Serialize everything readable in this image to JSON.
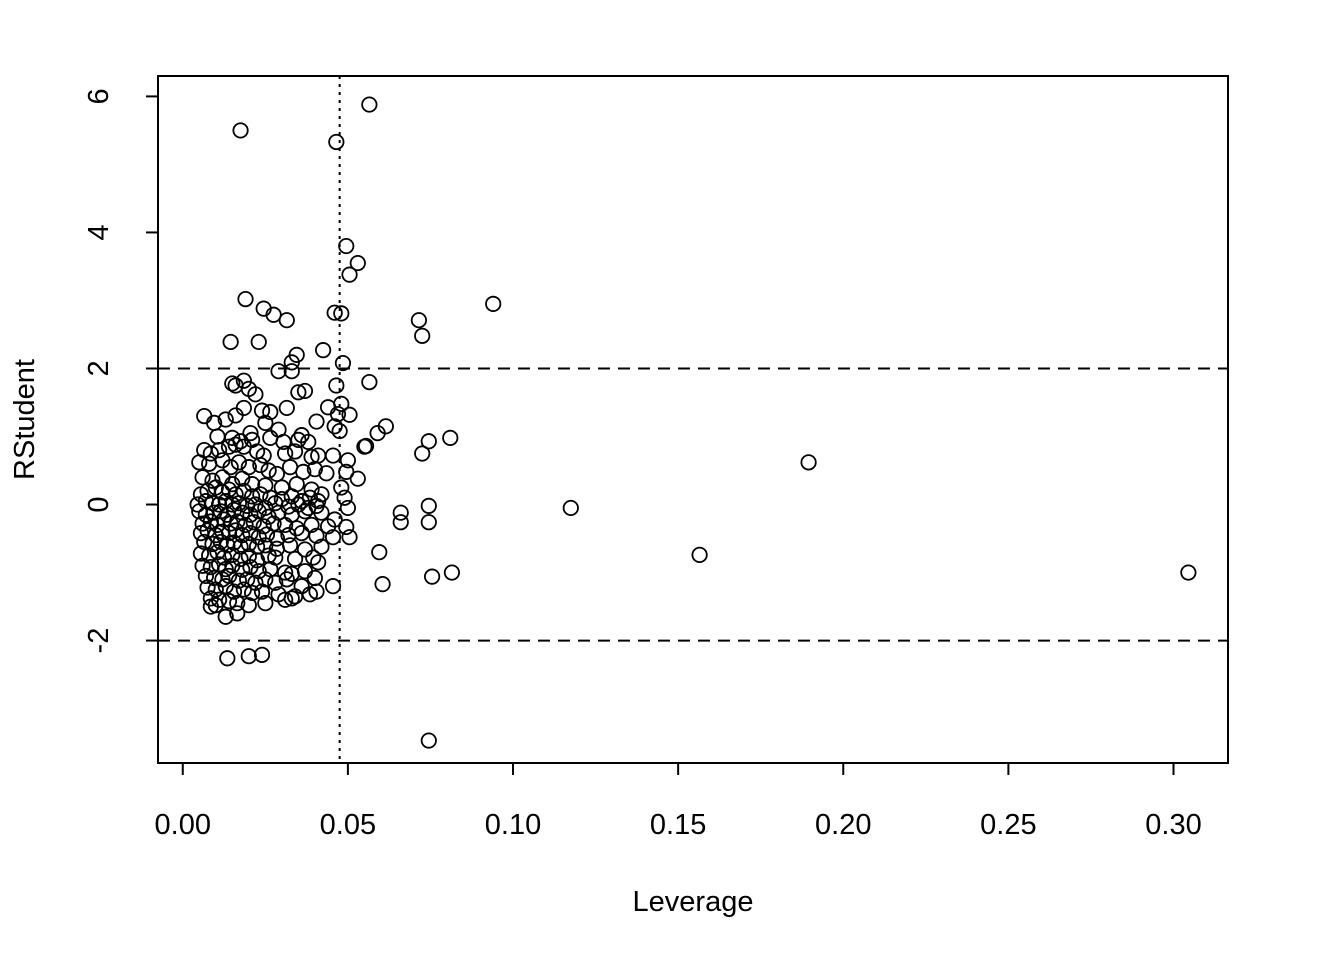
{
  "chart_data": {
    "type": "scatter",
    "title": "",
    "xlabel": "Leverage",
    "ylabel": "RStudent",
    "xlim": [
      -0.0075,
      0.3165
    ],
    "ylim": [
      -3.8,
      6.3
    ],
    "xticks": [
      0.0,
      0.05,
      0.1,
      0.15,
      0.2,
      0.25,
      0.3
    ],
    "xtick_labels": [
      "0.00",
      "0.05",
      "0.10",
      "0.15",
      "0.20",
      "0.25",
      "0.30"
    ],
    "yticks": [
      -2,
      0,
      2,
      4,
      6
    ],
    "ytick_labels": [
      "-2",
      "0",
      "2",
      "4",
      "6"
    ],
    "reference_lines": [
      {
        "orientation": "horizontal",
        "value": 2,
        "style": "dashed"
      },
      {
        "orientation": "horizontal",
        "value": -2,
        "style": "dashed"
      },
      {
        "orientation": "vertical",
        "value": 0.0475,
        "style": "dotted"
      }
    ],
    "marker": "open-circle",
    "grid": false,
    "legend": "none",
    "points": [
      [
        0.0175,
        5.5
      ],
      [
        0.0465,
        5.33
      ],
      [
        0.0565,
        5.88
      ],
      [
        0.0495,
        3.8
      ],
      [
        0.053,
        3.55
      ],
      [
        0.0505,
        3.38
      ],
      [
        0.019,
        3.02
      ],
      [
        0.0245,
        2.88
      ],
      [
        0.0275,
        2.79
      ],
      [
        0.0315,
        2.71
      ],
      [
        0.046,
        2.82
      ],
      [
        0.048,
        2.81
      ],
      [
        0.0715,
        2.71
      ],
      [
        0.0725,
        2.48
      ],
      [
        0.094,
        2.95
      ],
      [
        0.0145,
        2.39
      ],
      [
        0.023,
        2.39
      ],
      [
        0.0425,
        2.27
      ],
      [
        0.0345,
        2.2
      ],
      [
        0.033,
        2.09
      ],
      [
        0.0485,
        2.08
      ],
      [
        0.033,
        1.96
      ],
      [
        0.029,
        1.96
      ],
      [
        0.015,
        1.78
      ],
      [
        0.016,
        1.75
      ],
      [
        0.0185,
        1.82
      ],
      [
        0.02,
        1.7
      ],
      [
        0.022,
        1.62
      ],
      [
        0.035,
        1.65
      ],
      [
        0.037,
        1.67
      ],
      [
        0.0465,
        1.75
      ],
      [
        0.0565,
        1.8
      ],
      [
        0.048,
        1.48
      ],
      [
        0.0185,
        1.42
      ],
      [
        0.024,
        1.38
      ],
      [
        0.0265,
        1.36
      ],
      [
        0.0315,
        1.42
      ],
      [
        0.0405,
        1.22
      ],
      [
        0.044,
        1.43
      ],
      [
        0.0505,
        1.32
      ],
      [
        0.047,
        1.33
      ],
      [
        0.0065,
        1.3
      ],
      [
        0.0095,
        1.2
      ],
      [
        0.013,
        1.25
      ],
      [
        0.016,
        1.31
      ],
      [
        0.025,
        1.2
      ],
      [
        0.029,
        1.1
      ],
      [
        0.046,
        1.15
      ],
      [
        0.0475,
        1.08
      ],
      [
        0.059,
        1.05
      ],
      [
        0.0615,
        1.15
      ],
      [
        0.055,
        0.85
      ],
      [
        0.0555,
        0.86
      ],
      [
        0.0745,
        0.93
      ],
      [
        0.0725,
        0.75
      ],
      [
        0.081,
        0.98
      ],
      [
        0.0105,
        1.0
      ],
      [
        0.015,
        0.98
      ],
      [
        0.0175,
        0.93
      ],
      [
        0.0205,
        1.05
      ],
      [
        0.021,
        0.95
      ],
      [
        0.0265,
        0.98
      ],
      [
        0.0305,
        0.92
      ],
      [
        0.035,
        0.95
      ],
      [
        0.036,
        1.02
      ],
      [
        0.038,
        0.92
      ],
      [
        0.0065,
        0.8
      ],
      [
        0.0085,
        0.75
      ],
      [
        0.011,
        0.8
      ],
      [
        0.014,
        0.85
      ],
      [
        0.016,
        0.88
      ],
      [
        0.0185,
        0.85
      ],
      [
        0.0225,
        0.78
      ],
      [
        0.0245,
        0.72
      ],
      [
        0.031,
        0.75
      ],
      [
        0.034,
        0.78
      ],
      [
        0.039,
        0.7
      ],
      [
        0.041,
        0.72
      ],
      [
        0.0455,
        0.72
      ],
      [
        0.05,
        0.65
      ],
      [
        0.005,
        0.62
      ],
      [
        0.008,
        0.6
      ],
      [
        0.012,
        0.65
      ],
      [
        0.0145,
        0.55
      ],
      [
        0.017,
        0.62
      ],
      [
        0.02,
        0.55
      ],
      [
        0.0235,
        0.58
      ],
      [
        0.026,
        0.5
      ],
      [
        0.0285,
        0.45
      ],
      [
        0.0325,
        0.55
      ],
      [
        0.0365,
        0.48
      ],
      [
        0.04,
        0.52
      ],
      [
        0.0435,
        0.46
      ],
      [
        0.0495,
        0.48
      ],
      [
        0.053,
        0.38
      ],
      [
        0.006,
        0.4
      ],
      [
        0.009,
        0.35
      ],
      [
        0.012,
        0.4
      ],
      [
        0.015,
        0.3
      ],
      [
        0.018,
        0.38
      ],
      [
        0.021,
        0.3
      ],
      [
        0.025,
        0.28
      ],
      [
        0.03,
        0.25
      ],
      [
        0.0345,
        0.3
      ],
      [
        0.039,
        0.22
      ],
      [
        0.042,
        0.15
      ],
      [
        0.048,
        0.25
      ],
      [
        0.0055,
        0.15
      ],
      [
        0.0075,
        0.2
      ],
      [
        0.01,
        0.25
      ],
      [
        0.012,
        0.18
      ],
      [
        0.014,
        0.22
      ],
      [
        0.016,
        0.15
      ],
      [
        0.0185,
        0.2
      ],
      [
        0.021,
        0.12
      ],
      [
        0.0235,
        0.15
      ],
      [
        0.0265,
        0.1
      ],
      [
        0.03,
        0.08
      ],
      [
        0.033,
        0.12
      ],
      [
        0.036,
        0.05
      ],
      [
        0.0385,
        0.1
      ],
      [
        0.041,
        0.05
      ],
      [
        0.049,
        0.1
      ],
      [
        0.0045,
        0.0
      ],
      [
        0.007,
        0.05
      ],
      [
        0.009,
        0.02
      ],
      [
        0.011,
        0.0
      ],
      [
        0.013,
        0.05
      ],
      [
        0.015,
        0.0
      ],
      [
        0.017,
        0.02
      ],
      [
        0.0195,
        -0.02
      ],
      [
        0.022,
        0.0
      ],
      [
        0.025,
        -0.05
      ],
      [
        0.028,
        0.02
      ],
      [
        0.032,
        -0.03
      ],
      [
        0.035,
        0.0
      ],
      [
        0.038,
        -0.05
      ],
      [
        0.0405,
        -0.02
      ],
      [
        0.05,
        -0.05
      ],
      [
        0.066,
        -0.12
      ],
      [
        0.0745,
        -0.02
      ],
      [
        0.1175,
        -0.05
      ],
      [
        0.005,
        -0.1
      ],
      [
        0.007,
        -0.15
      ],
      [
        0.0095,
        -0.12
      ],
      [
        0.0115,
        -0.1
      ],
      [
        0.0135,
        -0.15
      ],
      [
        0.0155,
        -0.08
      ],
      [
        0.018,
        -0.12
      ],
      [
        0.0205,
        -0.15
      ],
      [
        0.023,
        -0.1
      ],
      [
        0.026,
        -0.18
      ],
      [
        0.029,
        -0.12
      ],
      [
        0.033,
        -0.15
      ],
      [
        0.037,
        -0.1
      ],
      [
        0.042,
        -0.12
      ],
      [
        0.046,
        -0.22
      ],
      [
        0.066,
        -0.26
      ],
      [
        0.0745,
        -0.26
      ],
      [
        0.006,
        -0.28
      ],
      [
        0.0085,
        -0.25
      ],
      [
        0.0105,
        -0.3
      ],
      [
        0.0125,
        -0.22
      ],
      [
        0.0145,
        -0.28
      ],
      [
        0.0165,
        -0.25
      ],
      [
        0.019,
        -0.3
      ],
      [
        0.0215,
        -0.26
      ],
      [
        0.0245,
        -0.32
      ],
      [
        0.0275,
        -0.28
      ],
      [
        0.031,
        -0.3
      ],
      [
        0.0345,
        -0.35
      ],
      [
        0.039,
        -0.3
      ],
      [
        0.044,
        -0.32
      ],
      [
        0.0495,
        -0.33
      ],
      [
        0.0055,
        -0.42
      ],
      [
        0.0075,
        -0.38
      ],
      [
        0.01,
        -0.45
      ],
      [
        0.012,
        -0.4
      ],
      [
        0.014,
        -0.42
      ],
      [
        0.016,
        -0.38
      ],
      [
        0.018,
        -0.45
      ],
      [
        0.0205,
        -0.42
      ],
      [
        0.023,
        -0.48
      ],
      [
        0.0255,
        -0.44
      ],
      [
        0.0285,
        -0.5
      ],
      [
        0.032,
        -0.45
      ],
      [
        0.036,
        -0.42
      ],
      [
        0.0405,
        -0.46
      ],
      [
        0.0455,
        -0.48
      ],
      [
        0.0505,
        -0.48
      ],
      [
        0.0065,
        -0.55
      ],
      [
        0.009,
        -0.58
      ],
      [
        0.0115,
        -0.55
      ],
      [
        0.0135,
        -0.6
      ],
      [
        0.0155,
        -0.56
      ],
      [
        0.0175,
        -0.62
      ],
      [
        0.02,
        -0.58
      ],
      [
        0.0225,
        -0.62
      ],
      [
        0.025,
        -0.6
      ],
      [
        0.0285,
        -0.65
      ],
      [
        0.0325,
        -0.6
      ],
      [
        0.037,
        -0.66
      ],
      [
        0.042,
        -0.62
      ],
      [
        0.0595,
        -0.7
      ],
      [
        0.0055,
        -0.72
      ],
      [
        0.008,
        -0.75
      ],
      [
        0.0105,
        -0.7
      ],
      [
        0.0125,
        -0.78
      ],
      [
        0.015,
        -0.74
      ],
      [
        0.0175,
        -0.8
      ],
      [
        0.02,
        -0.76
      ],
      [
        0.0225,
        -0.82
      ],
      [
        0.026,
        -0.75
      ],
      [
        0.028,
        -0.78
      ],
      [
        0.034,
        -0.8
      ],
      [
        0.0395,
        -0.78
      ],
      [
        0.041,
        -0.85
      ],
      [
        0.006,
        -0.9
      ],
      [
        0.0085,
        -0.92
      ],
      [
        0.011,
        -0.88
      ],
      [
        0.013,
        -0.95
      ],
      [
        0.015,
        -0.9
      ],
      [
        0.018,
        -0.96
      ],
      [
        0.0205,
        -0.92
      ],
      [
        0.023,
        -0.98
      ],
      [
        0.0265,
        -0.95
      ],
      [
        0.031,
        -1.0
      ],
      [
        0.033,
        -1.02
      ],
      [
        0.037,
        -0.98
      ],
      [
        0.04,
        -1.08
      ],
      [
        0.0755,
        -1.06
      ],
      [
        0.0815,
        -1.0
      ],
      [
        0.007,
        -1.05
      ],
      [
        0.0095,
        -1.08
      ],
      [
        0.012,
        -1.1
      ],
      [
        0.014,
        -1.05
      ],
      [
        0.017,
        -1.12
      ],
      [
        0.0195,
        -1.1
      ],
      [
        0.022,
        -1.15
      ],
      [
        0.025,
        -1.1
      ],
      [
        0.028,
        -1.15
      ],
      [
        0.0315,
        -1.1
      ],
      [
        0.036,
        -1.2
      ],
      [
        0.0455,
        -1.2
      ],
      [
        0.0605,
        -1.17
      ],
      [
        0.0075,
        -1.22
      ],
      [
        0.01,
        -1.25
      ],
      [
        0.013,
        -1.2
      ],
      [
        0.0155,
        -1.28
      ],
      [
        0.0185,
        -1.25
      ],
      [
        0.021,
        -1.3
      ],
      [
        0.024,
        -1.28
      ],
      [
        0.029,
        -1.32
      ],
      [
        0.034,
        -1.35
      ],
      [
        0.0385,
        -1.32
      ],
      [
        0.0405,
        -1.28
      ],
      [
        0.0085,
        -1.38
      ],
      [
        0.011,
        -1.4
      ],
      [
        0.014,
        -1.42
      ],
      [
        0.0165,
        -1.45
      ],
      [
        0.02,
        -1.48
      ],
      [
        0.025,
        -1.45
      ],
      [
        0.031,
        -1.4
      ],
      [
        0.033,
        -1.38
      ],
      [
        0.0085,
        -1.5
      ],
      [
        0.01,
        -1.48
      ],
      [
        0.013,
        -1.65
      ],
      [
        0.0165,
        -1.6
      ],
      [
        0.0135,
        -2.26
      ],
      [
        0.02,
        -2.23
      ],
      [
        0.024,
        -2.21
      ],
      [
        0.0745,
        -3.47
      ],
      [
        0.1565,
        -0.74
      ],
      [
        0.1895,
        0.62
      ],
      [
        0.3045,
        -1.0
      ]
    ]
  }
}
